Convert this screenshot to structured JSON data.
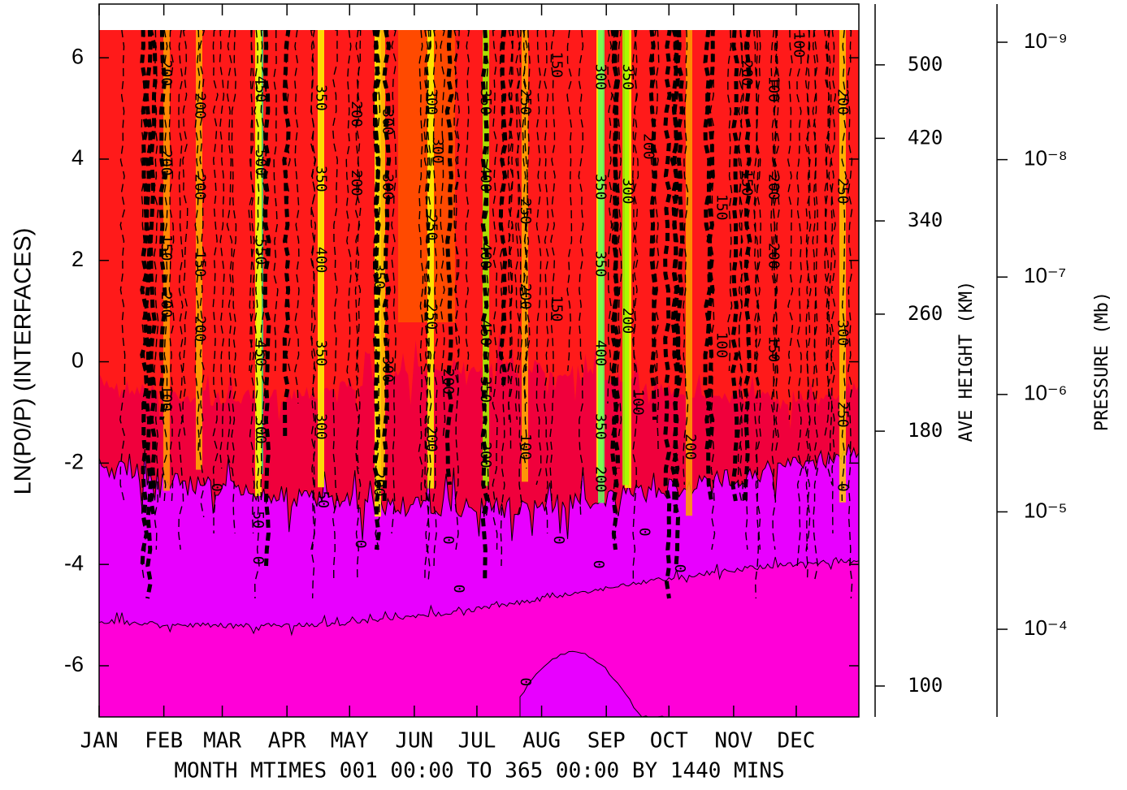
{
  "chart_data": {
    "type": "contour",
    "y_title": "LN(P0/P) (INTERFACES)",
    "x_title": "MONTH MTIMES 001 00:00 TO 365 00:00 BY 1440 MINS",
    "xlim": [
      1,
      365
    ],
    "xticks": [
      {
        "value": 1,
        "label": "JAN"
      },
      {
        "value": 32,
        "label": "FEB"
      },
      {
        "value": 60,
        "label": "MAR"
      },
      {
        "value": 91,
        "label": "APR"
      },
      {
        "value": 121,
        "label": "MAY"
      },
      {
        "value": 152,
        "label": "JUN"
      },
      {
        "value": 182,
        "label": "JUL"
      },
      {
        "value": 213,
        "label": "AUG"
      },
      {
        "value": 244,
        "label": "SEP"
      },
      {
        "value": 274,
        "label": "OCT"
      },
      {
        "value": 305,
        "label": "NOV"
      },
      {
        "value": 335,
        "label": "DEC"
      }
    ],
    "ylim": [
      -7.01,
      7.06
    ],
    "yticks": [
      -6,
      -4,
      -2,
      0,
      2,
      4,
      6
    ],
    "y2_title": "AVE HEIGHT (KM)",
    "y2ticks": [
      {
        "value": 100,
        "ln_position": -6.4
      },
      {
        "value": 180,
        "ln_position": -1.37
      },
      {
        "value": 260,
        "ln_position": 0.94
      },
      {
        "value": 340,
        "ln_position": 2.78
      },
      {
        "value": 420,
        "ln_position": 4.41
      },
      {
        "value": 500,
        "ln_position": 5.86
      }
    ],
    "y3_title": "PRESSURE (Mb)",
    "y3_log": true,
    "y3lim": [
      0.000558,
      4.73e-10
    ],
    "y3ticks": [
      {
        "value": 1e-09,
        "label": "10⁻⁹"
      },
      {
        "value": 1e-08,
        "label": "10⁻⁸"
      },
      {
        "value": 1e-07,
        "label": "10⁻⁷"
      },
      {
        "value": 1e-06,
        "label": "10⁻⁶"
      },
      {
        "value": 1e-05,
        "label": "10⁻⁵"
      },
      {
        "value": 0.0001,
        "label": "10⁻⁴"
      }
    ],
    "contour_labels": [
      {
        "value": 200,
        "x": 33,
        "y": 5.7
      },
      {
        "value": 200,
        "x": 33,
        "y": 3.93
      },
      {
        "value": 150,
        "x": 33,
        "y": 2.25
      },
      {
        "value": 200,
        "x": 33,
        "y": 1.13
      },
      {
        "value": 100,
        "x": 33,
        "y": -0.72
      },
      {
        "value": 200,
        "x": 49,
        "y": 5.05
      },
      {
        "value": 200,
        "x": 49,
        "y": 3.45
      },
      {
        "value": 150,
        "x": 49,
        "y": 1.93
      },
      {
        "value": 200,
        "x": 49,
        "y": 0.65
      },
      {
        "value": 450,
        "x": 78,
        "y": 5.38
      },
      {
        "value": 500,
        "x": 78,
        "y": 3.93
      },
      {
        "value": 550,
        "x": 78,
        "y": 2.17
      },
      {
        "value": 450,
        "x": 78,
        "y": 0.17
      },
      {
        "value": 300,
        "x": 78,
        "y": -1.36
      },
      {
        "value": 50,
        "x": 77,
        "y": -3.12
      },
      {
        "value": 0,
        "x": 77,
        "y": -3.92
      },
      {
        "value": 350,
        "x": 107,
        "y": 5.21
      },
      {
        "value": 350,
        "x": 107,
        "y": 3.61
      },
      {
        "value": 400,
        "x": 107,
        "y": 2.01
      },
      {
        "value": 350,
        "x": 107,
        "y": 0.17
      },
      {
        "value": 300,
        "x": 107,
        "y": -1.28
      },
      {
        "value": 50,
        "x": 108,
        "y": -2.72
      },
      {
        "value": 200,
        "x": 124,
        "y": 4.89
      },
      {
        "value": 200,
        "x": 124,
        "y": 3.53
      },
      {
        "value": 350,
        "x": 135,
        "y": 1.69
      },
      {
        "value": 300,
        "x": 139,
        "y": -0.15
      },
      {
        "value": 200,
        "x": 135,
        "y": -2.4
      },
      {
        "value": 300,
        "x": 139,
        "y": 4.73
      },
      {
        "value": 300,
        "x": 139,
        "y": 3.45
      },
      {
        "value": 0,
        "x": 126,
        "y": -3.6
      },
      {
        "value": 300,
        "x": 160,
        "y": 5.13
      },
      {
        "value": 250,
        "x": 160,
        "y": 2.65
      },
      {
        "value": 250,
        "x": 160,
        "y": 0.89
      },
      {
        "value": 200,
        "x": 160,
        "y": -1.52
      },
      {
        "value": 300,
        "x": 163,
        "y": 4.17
      },
      {
        "value": 200,
        "x": 168,
        "y": -0.39
      },
      {
        "value": 0,
        "x": 168,
        "y": -3.52
      },
      {
        "value": 0,
        "x": 173,
        "y": -4.48
      },
      {
        "value": 350,
        "x": 186,
        "y": 5.13
      },
      {
        "value": 400,
        "x": 186,
        "y": 3.61
      },
      {
        "value": 400,
        "x": 186,
        "y": 2.09
      },
      {
        "value": 450,
        "x": 186,
        "y": 0.57
      },
      {
        "value": 350,
        "x": 186,
        "y": -0.55
      },
      {
        "value": 200,
        "x": 186,
        "y": -1.84
      },
      {
        "value": 250,
        "x": 205,
        "y": 5.13
      },
      {
        "value": 250,
        "x": 205,
        "y": 2.97
      },
      {
        "value": 200,
        "x": 205,
        "y": 1.29
      },
      {
        "value": 100,
        "x": 205,
        "y": -1.68
      },
      {
        "value": 150,
        "x": 220,
        "y": 5.86
      },
      {
        "value": 150,
        "x": 220,
        "y": 1.05
      },
      {
        "value": 0,
        "x": 221,
        "y": -3.52
      },
      {
        "value": 300,
        "x": 241,
        "y": 5.62
      },
      {
        "value": 350,
        "x": 241,
        "y": 3.45
      },
      {
        "value": 350,
        "x": 241,
        "y": 1.93
      },
      {
        "value": 400,
        "x": 241,
        "y": 0.17
      },
      {
        "value": 350,
        "x": 241,
        "y": -1.28
      },
      {
        "value": 200,
        "x": 241,
        "y": -2.32
      },
      {
        "value": 0,
        "x": 240,
        "y": -4.0
      },
      {
        "value": 350,
        "x": 254,
        "y": 5.62
      },
      {
        "value": 300,
        "x": 254,
        "y": 3.37
      },
      {
        "value": 200,
        "x": 254,
        "y": 0.81
      },
      {
        "value": 100,
        "x": 259,
        "y": -0.8
      },
      {
        "value": 0,
        "x": 262,
        "y": -3.36
      },
      {
        "value": 200,
        "x": 264,
        "y": 4.25
      },
      {
        "value": 200,
        "x": 284,
        "y": -1.68
      },
      {
        "value": 0,
        "x": 279,
        "y": -4.08
      },
      {
        "value": 150,
        "x": 299,
        "y": 3.05
      },
      {
        "value": 100,
        "x": 299,
        "y": 0.33
      },
      {
        "value": 200,
        "x": 311,
        "y": 5.7
      },
      {
        "value": 150,
        "x": 311,
        "y": 3.53
      },
      {
        "value": 100,
        "x": 324,
        "y": 5.38
      },
      {
        "value": 200,
        "x": 324,
        "y": 3.45
      },
      {
        "value": 200,
        "x": 324,
        "y": 2.09
      },
      {
        "value": 150,
        "x": 324,
        "y": 0.25
      },
      {
        "value": 200,
        "x": 357,
        "y": 5.13
      },
      {
        "value": 250,
        "x": 357,
        "y": 3.37
      },
      {
        "value": 300,
        "x": 357,
        "y": 0.57
      },
      {
        "value": 250,
        "x": 357,
        "y": -1.04
      },
      {
        "value": 0,
        "x": 357,
        "y": -2.48
      },
      {
        "value": 100,
        "x": 336,
        "y": 6.26
      },
      {
        "value": 0,
        "x": 205,
        "y": -6.32
      },
      {
        "value": 0,
        "x": 57,
        "y": -2.48
      }
    ]
  }
}
